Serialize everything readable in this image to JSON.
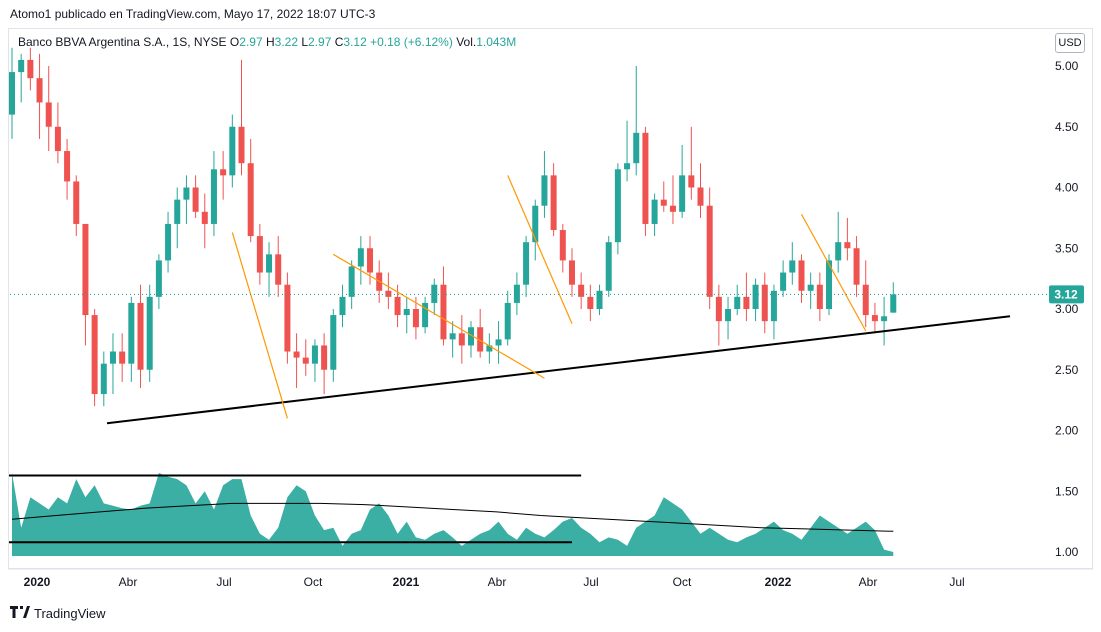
{
  "caption": "Atomo1 publicado en TradingView.com, Mayo 17, 2022 18:07 UTC-3",
  "legend": {
    "symbol": "Banco BBVA Argentina S.A., 1S, NYSE",
    "o_label": "O",
    "o_val": "2.97",
    "h_label": "H",
    "h_val": "3.22",
    "l_label": "L",
    "l_val": "2.97",
    "c_label": "C",
    "c_val": "3.12",
    "change": "+0.18 (+6.12%)",
    "vol_label": "Vol.",
    "vol_val": "1.043M"
  },
  "currency": "USD",
  "footer": {
    "logo_icon": "tradingview-logo-icon",
    "brand": "TradingView"
  },
  "colors": {
    "up": "#26a69a",
    "down": "#ef5350",
    "volume": "#26a69a",
    "trend": "#ff9800",
    "support": "#000000"
  },
  "chart_data": {
    "type": "candlestick",
    "symbol": "Banco BBVA Argentina S.A.",
    "interval": "1S",
    "exchange": "NYSE",
    "y_axis": {
      "ticks": [
        "5.00",
        "4.50",
        "4.00",
        "3.50",
        "3.00",
        "2.50",
        "2.00",
        "1.50",
        "1.00"
      ],
      "range": [
        0.9,
        5.2
      ],
      "position": "right"
    },
    "x_axis": {
      "ticks": [
        "2020",
        "Abr",
        "Jul",
        "Oct",
        "2021",
        "Abr",
        "Jul",
        "Oct",
        "2022",
        "Abr",
        "Jul"
      ],
      "bold": [
        "2020",
        "2021",
        "2022"
      ]
    },
    "last_price": "3.12",
    "ohlc": [
      [
        4.6,
        5.15,
        4.4,
        4.95
      ],
      [
        4.95,
        5.1,
        4.7,
        5.05
      ],
      [
        5.05,
        5.15,
        4.8,
        4.9
      ],
      [
        4.9,
        5.1,
        4.4,
        4.7
      ],
      [
        4.7,
        5.0,
        4.3,
        4.5
      ],
      [
        4.5,
        4.7,
        4.2,
        4.3
      ],
      [
        4.3,
        4.4,
        3.9,
        4.05
      ],
      [
        4.05,
        4.1,
        3.6,
        3.7
      ],
      [
        3.7,
        3.7,
        2.7,
        2.95
      ],
      [
        2.95,
        3.0,
        2.2,
        2.3
      ],
      [
        2.3,
        2.65,
        2.2,
        2.55
      ],
      [
        2.55,
        2.8,
        2.3,
        2.65
      ],
      [
        2.65,
        2.8,
        2.4,
        2.55
      ],
      [
        2.55,
        3.1,
        2.4,
        3.05
      ],
      [
        3.05,
        3.2,
        2.35,
        2.5
      ],
      [
        2.5,
        3.2,
        2.4,
        3.1
      ],
      [
        3.1,
        3.45,
        3.0,
        3.4
      ],
      [
        3.4,
        3.8,
        3.3,
        3.7
      ],
      [
        3.7,
        4.0,
        3.5,
        3.9
      ],
      [
        3.9,
        4.1,
        3.7,
        4.0
      ],
      [
        4.0,
        4.1,
        3.75,
        3.8
      ],
      [
        3.8,
        3.95,
        3.5,
        3.7
      ],
      [
        3.7,
        4.3,
        3.6,
        4.15
      ],
      [
        4.15,
        4.3,
        3.9,
        4.1
      ],
      [
        4.1,
        4.6,
        4.0,
        4.5
      ],
      [
        4.5,
        5.05,
        4.1,
        4.2
      ],
      [
        4.2,
        4.4,
        3.55,
        3.6
      ],
      [
        3.6,
        3.7,
        3.2,
        3.3
      ],
      [
        3.3,
        3.55,
        3.1,
        3.45
      ],
      [
        3.45,
        3.6,
        3.1,
        3.2
      ],
      [
        3.2,
        3.3,
        2.55,
        2.65
      ],
      [
        2.65,
        2.8,
        2.35,
        2.6
      ],
      [
        2.6,
        2.75,
        2.45,
        2.55
      ],
      [
        2.55,
        2.75,
        2.4,
        2.7
      ],
      [
        2.7,
        2.8,
        2.3,
        2.5
      ],
      [
        2.5,
        3.0,
        2.4,
        2.95
      ],
      [
        2.95,
        3.2,
        2.85,
        3.1
      ],
      [
        3.1,
        3.4,
        3.0,
        3.35
      ],
      [
        3.35,
        3.6,
        3.2,
        3.5
      ],
      [
        3.5,
        3.6,
        3.2,
        3.3
      ],
      [
        3.3,
        3.4,
        3.05,
        3.15
      ],
      [
        3.15,
        3.3,
        3.0,
        3.1
      ],
      [
        3.1,
        3.2,
        2.85,
        2.95
      ],
      [
        2.95,
        3.1,
        2.8,
        3.0
      ],
      [
        3.0,
        3.1,
        2.75,
        2.85
      ],
      [
        2.85,
        3.1,
        2.8,
        3.05
      ],
      [
        3.05,
        3.25,
        2.95,
        3.2
      ],
      [
        3.2,
        3.35,
        2.7,
        2.75
      ],
      [
        2.75,
        2.9,
        2.6,
        2.8
      ],
      [
        2.8,
        2.95,
        2.55,
        2.7
      ],
      [
        2.7,
        2.9,
        2.6,
        2.85
      ],
      [
        2.85,
        3.0,
        2.6,
        2.65
      ],
      [
        2.65,
        2.8,
        2.55,
        2.7
      ],
      [
        2.7,
        2.9,
        2.55,
        2.75
      ],
      [
        2.75,
        3.15,
        2.7,
        3.05
      ],
      [
        3.05,
        3.3,
        2.95,
        3.2
      ],
      [
        3.2,
        3.6,
        3.1,
        3.55
      ],
      [
        3.55,
        3.9,
        3.4,
        3.85
      ],
      [
        3.85,
        4.3,
        3.75,
        4.1
      ],
      [
        4.1,
        4.2,
        3.6,
        3.65
      ],
      [
        3.65,
        3.7,
        3.3,
        3.4
      ],
      [
        3.4,
        3.5,
        3.1,
        3.2
      ],
      [
        3.2,
        3.3,
        3.0,
        3.1
      ],
      [
        3.1,
        3.2,
        2.9,
        3.0
      ],
      [
        3.0,
        3.2,
        2.95,
        3.15
      ],
      [
        3.15,
        3.6,
        3.1,
        3.55
      ],
      [
        3.55,
        4.2,
        3.45,
        4.15
      ],
      [
        4.15,
        4.55,
        4.05,
        4.2
      ],
      [
        4.2,
        5.0,
        4.1,
        4.45
      ],
      [
        4.45,
        4.5,
        3.6,
        3.7
      ],
      [
        3.7,
        3.95,
        3.6,
        3.9
      ],
      [
        3.9,
        4.05,
        3.8,
        3.85
      ],
      [
        3.85,
        4.1,
        3.7,
        3.8
      ],
      [
        3.8,
        4.35,
        3.75,
        4.1
      ],
      [
        4.1,
        4.5,
        3.9,
        4.0
      ],
      [
        4.0,
        4.2,
        3.75,
        3.85
      ],
      [
        3.85,
        4.0,
        3.0,
        3.1
      ],
      [
        3.1,
        3.2,
        2.7,
        2.9
      ],
      [
        2.9,
        3.1,
        2.75,
        3.0
      ],
      [
        3.0,
        3.2,
        2.95,
        3.1
      ],
      [
        3.1,
        3.3,
        2.9,
        3.0
      ],
      [
        3.0,
        3.25,
        2.9,
        3.2
      ],
      [
        3.2,
        3.3,
        2.8,
        2.9
      ],
      [
        2.9,
        3.2,
        2.75,
        3.15
      ],
      [
        3.15,
        3.4,
        3.1,
        3.3
      ],
      [
        3.3,
        3.55,
        3.2,
        3.4
      ],
      [
        3.4,
        3.45,
        3.05,
        3.15
      ],
      [
        3.15,
        3.3,
        3.0,
        3.2
      ],
      [
        3.2,
        3.3,
        2.9,
        3.0
      ],
      [
        3.0,
        3.45,
        2.95,
        3.4
      ],
      [
        3.4,
        3.8,
        3.3,
        3.55
      ],
      [
        3.55,
        3.75,
        3.4,
        3.5
      ],
      [
        3.5,
        3.6,
        3.1,
        3.2
      ],
      [
        3.2,
        3.4,
        2.85,
        2.95
      ],
      [
        2.95,
        3.05,
        2.8,
        2.9
      ],
      [
        2.9,
        3.1,
        2.7,
        2.94
      ],
      [
        2.97,
        3.22,
        2.97,
        3.12
      ]
    ],
    "volume": [
      1.65,
      1.2,
      1.45,
      1.4,
      1.35,
      1.45,
      1.4,
      1.6,
      1.45,
      1.55,
      1.4,
      1.38,
      1.36,
      1.35,
      1.38,
      1.4,
      1.65,
      1.62,
      1.6,
      1.55,
      1.4,
      1.5,
      1.35,
      1.55,
      1.6,
      1.6,
      1.3,
      1.15,
      1.1,
      1.2,
      1.45,
      1.55,
      1.5,
      1.3,
      1.18,
      1.2,
      1.05,
      1.15,
      1.18,
      1.35,
      1.4,
      1.3,
      1.15,
      1.25,
      1.12,
      1.1,
      1.15,
      1.18,
      1.12,
      1.05,
      1.1,
      1.15,
      1.18,
      1.25,
      1.15,
      1.1,
      1.2,
      1.15,
      1.12,
      1.18,
      1.25,
      1.28,
      1.2,
      1.15,
      1.08,
      1.12,
      1.1,
      1.05,
      1.2,
      1.25,
      1.3,
      1.45,
      1.4,
      1.35,
      1.25,
      1.15,
      1.2,
      1.15,
      1.1,
      1.08,
      1.12,
      1.15,
      1.2,
      1.25,
      1.18,
      1.15,
      1.1,
      1.2,
      1.3,
      1.25,
      1.2,
      1.15,
      1.2,
      1.25,
      1.18,
      1.02,
      1.0
    ],
    "volume_ma": [
      1.27,
      1.3,
      1.33,
      1.36,
      1.38,
      1.4,
      1.4,
      1.4,
      1.39,
      1.37,
      1.35,
      1.33,
      1.3,
      1.28,
      1.26,
      1.24,
      1.22,
      1.2,
      1.19,
      1.18,
      1.17
    ],
    "support_line": [
      [
        0,
        2.06
      ],
      [
        100,
        2.94
      ]
    ],
    "trend_lines": [
      [
        [
          24,
          3.63
        ],
        [
          30,
          2.1
        ]
      ],
      [
        [
          35,
          3.45
        ],
        [
          58,
          2.43
        ]
      ],
      [
        [
          54,
          4.1
        ],
        [
          61,
          2.88
        ]
      ],
      [
        [
          86,
          3.78
        ],
        [
          93,
          2.82
        ]
      ]
    ],
    "volume_lines": [
      [
        [
          0,
          1.63
        ],
        [
          62,
          1.63
        ]
      ],
      [
        [
          0,
          1.08
        ],
        [
          61,
          1.08
        ]
      ]
    ]
  }
}
